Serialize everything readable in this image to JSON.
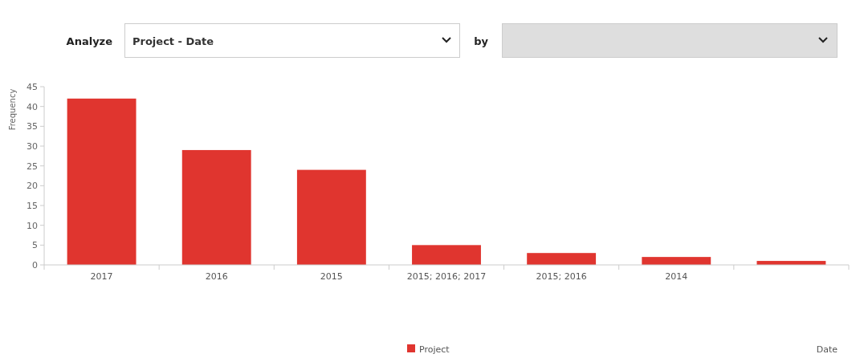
{
  "chart_data": {
    "type": "bar",
    "categories": [
      "2017",
      "2016",
      "2015",
      "2015; 2016; 2017",
      "2015; 2016",
      "2014",
      null
    ],
    "series": [
      {
        "name": "Project",
        "color": "#e0352f",
        "values": [
          42,
          29,
          24,
          5,
          3,
          2,
          1
        ]
      }
    ],
    "ylabel": "Frequency",
    "ylim": [
      0,
      45
    ],
    "yticks": [
      0,
      5,
      10,
      15,
      20,
      25,
      30,
      35,
      40,
      45
    ],
    "grid": false,
    "legend": "bottom",
    "annotations": [
      "Analyze",
      "Project - Date",
      "by",
      "Date"
    ]
  }
}
